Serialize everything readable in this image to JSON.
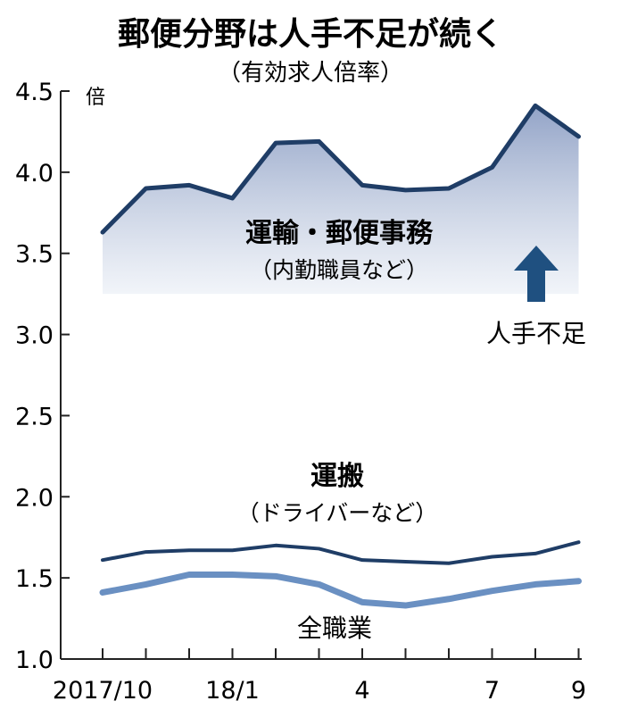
{
  "chart_data": {
    "type": "line",
    "title": "郵便分野は人手不足が続く",
    "subtitle": "（有効求人倍率）",
    "ylabel": "倍",
    "ylim": [
      1.0,
      4.5
    ],
    "y_ticks": [
      "4.5",
      "4.0",
      "3.5",
      "3.0",
      "2.5",
      "2.0",
      "1.5",
      "1.0"
    ],
    "x": [
      "2017/10",
      "2017/11",
      "2017/12",
      "2018/1",
      "2018/2",
      "2018/3",
      "2018/4",
      "2018/5",
      "2018/6",
      "2018/7",
      "2018/8",
      "2018/9"
    ],
    "x_tick_labels": [
      {
        "index": 0,
        "label": "2017/10"
      },
      {
        "index": 3,
        "label": "18/1"
      },
      {
        "index": 6,
        "label": "4"
      },
      {
        "index": 9,
        "label": "7"
      },
      {
        "index": 11,
        "label": "9"
      }
    ],
    "series": [
      {
        "name": "運輸・郵便事務",
        "name_sub": "（内勤職員など）",
        "values": [
          3.63,
          3.9,
          3.92,
          3.84,
          4.18,
          4.19,
          3.92,
          3.89,
          3.9,
          4.03,
          4.41,
          4.22
        ],
        "color": "#1f3d66",
        "fill": "#a9b8d4"
      },
      {
        "name": "運搬",
        "name_sub": "（ドライバーなど）",
        "values": [
          1.61,
          1.66,
          1.67,
          1.67,
          1.7,
          1.68,
          1.61,
          1.6,
          1.59,
          1.63,
          1.65,
          1.72
        ],
        "color": "#1f3d66"
      },
      {
        "name": "全職業",
        "values": [
          1.41,
          1.46,
          1.52,
          1.52,
          1.51,
          1.46,
          1.35,
          1.33,
          1.37,
          1.42,
          1.46,
          1.48
        ],
        "color": "#6a90c2"
      }
    ],
    "annotation": {
      "text": "人手不足",
      "icon": "arrow-up-icon",
      "color": "#1f5080"
    },
    "grid": false,
    "axis_color": "#222222"
  }
}
